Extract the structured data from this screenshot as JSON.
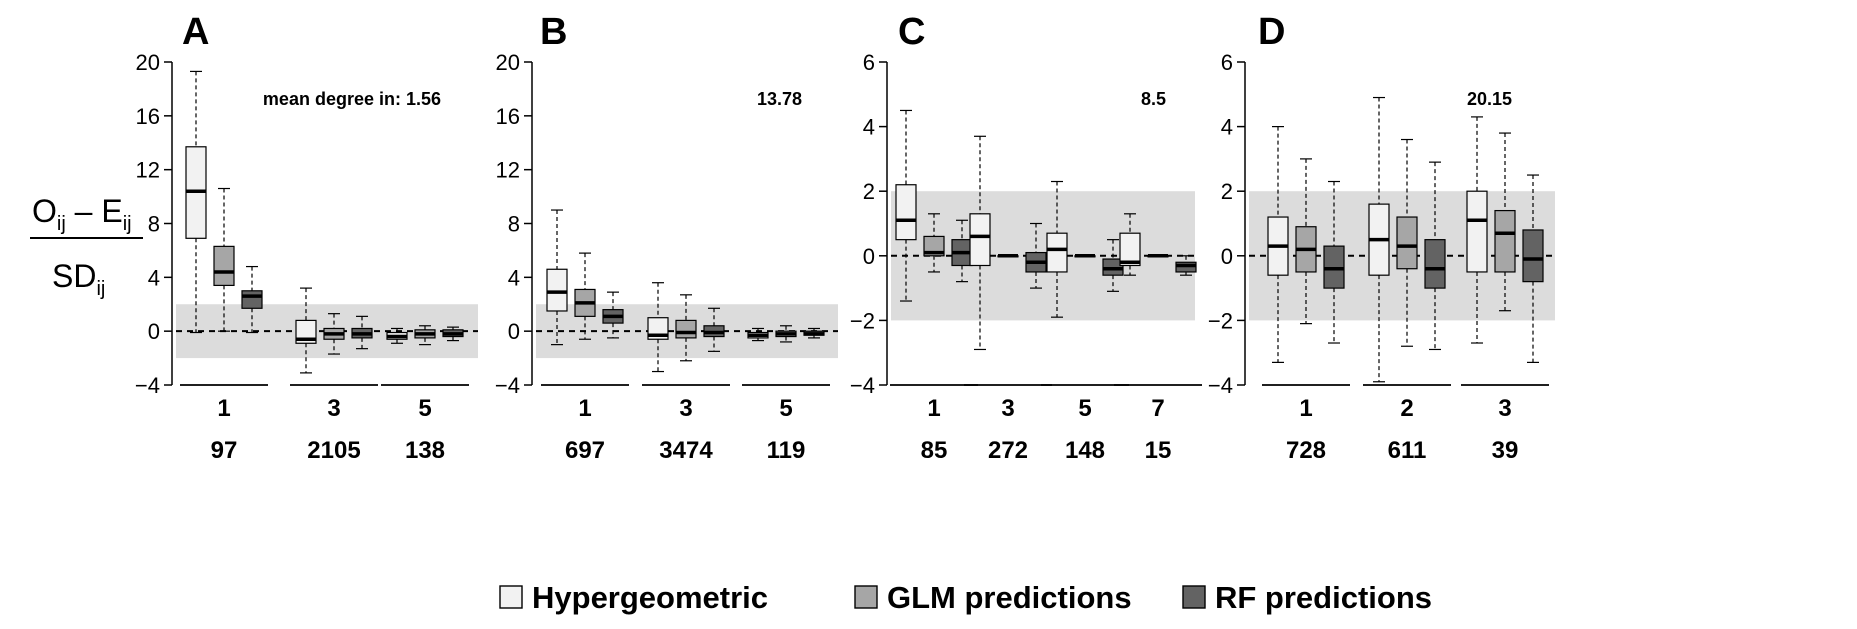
{
  "chart_data": [
    {
      "type": "box",
      "panel": "A",
      "ylim": [
        -4,
        20
      ],
      "yticks": [
        -4,
        0,
        4,
        8,
        12,
        16,
        20
      ],
      "band": [
        -2,
        2
      ],
      "annotation": "mean degree in: 1.56",
      "categories": [
        "1",
        "3",
        "5"
      ],
      "counts": [
        "97",
        "2105",
        "138"
      ],
      "groups": [
        {
          "series": [
            {
              "min": -0.1,
              "q1": 6.9,
              "med": 10.4,
              "q3": 13.7,
              "max": 19.3
            },
            {
              "min": 0.0,
              "q1": 3.4,
              "med": 4.4,
              "q3": 6.3,
              "max": 10.6
            },
            {
              "min": -0.1,
              "q1": 1.7,
              "med": 2.6,
              "q3": 3.0,
              "max": 4.8
            }
          ]
        },
        {
          "series": [
            {
              "min": -3.1,
              "q1": -0.9,
              "med": -0.6,
              "q3": 0.8,
              "max": 3.2
            },
            {
              "min": -1.7,
              "q1": -0.6,
              "med": -0.2,
              "q3": 0.2,
              "max": 1.3
            },
            {
              "min": -1.3,
              "q1": -0.5,
              "med": -0.2,
              "q3": 0.2,
              "max": 1.1
            }
          ]
        },
        {
          "series": [
            {
              "min": -0.9,
              "q1": -0.6,
              "med": -0.4,
              "q3": -0.1,
              "max": 0.2
            },
            {
              "min": -1.0,
              "q1": -0.5,
              "med": -0.2,
              "q3": 0.1,
              "max": 0.4
            },
            {
              "min": -0.7,
              "q1": -0.4,
              "med": -0.2,
              "q3": 0.1,
              "max": 0.3
            }
          ]
        }
      ]
    },
    {
      "type": "box",
      "panel": "B",
      "ylim": [
        -4,
        20
      ],
      "yticks": [
        -4,
        0,
        4,
        8,
        12,
        16,
        20
      ],
      "band": [
        -2,
        2
      ],
      "annotation": "13.78",
      "categories": [
        "1",
        "3",
        "5"
      ],
      "counts": [
        "697",
        "3474",
        "119"
      ],
      "groups": [
        {
          "series": [
            {
              "min": -1.0,
              "q1": 1.5,
              "med": 2.9,
              "q3": 4.6,
              "max": 9.0
            },
            {
              "min": -0.6,
              "q1": 1.1,
              "med": 2.1,
              "q3": 3.1,
              "max": 5.8
            },
            {
              "min": -0.5,
              "q1": 0.6,
              "med": 1.1,
              "q3": 1.6,
              "max": 2.9
            }
          ]
        },
        {
          "series": [
            {
              "min": -3.0,
              "q1": -0.6,
              "med": -0.3,
              "q3": 1.0,
              "max": 3.6
            },
            {
              "min": -2.2,
              "q1": -0.5,
              "med": -0.1,
              "q3": 0.8,
              "max": 2.7
            },
            {
              "min": -1.5,
              "q1": -0.4,
              "med": -0.1,
              "q3": 0.4,
              "max": 1.7
            }
          ]
        },
        {
          "series": [
            {
              "min": -0.7,
              "q1": -0.5,
              "med": -0.3,
              "q3": -0.1,
              "max": 0.2
            },
            {
              "min": -0.8,
              "q1": -0.4,
              "med": -0.2,
              "q3": 0.0,
              "max": 0.4
            },
            {
              "min": -0.5,
              "q1": -0.3,
              "med": -0.2,
              "q3": 0.0,
              "max": 0.2
            }
          ]
        }
      ]
    },
    {
      "type": "box",
      "panel": "C",
      "ylim": [
        -4,
        6
      ],
      "yticks": [
        -4,
        -2,
        0,
        2,
        4,
        6
      ],
      "band": [
        -2,
        2
      ],
      "annotation": "8.5",
      "categories": [
        "1",
        "3",
        "5",
        "7"
      ],
      "counts": [
        "85",
        "272",
        "148",
        "15"
      ],
      "groups": [
        {
          "series": [
            {
              "min": -1.4,
              "q1": 0.5,
              "med": 1.1,
              "q3": 2.2,
              "max": 4.5
            },
            {
              "min": -0.5,
              "q1": 0.0,
              "med": 0.1,
              "q3": 0.6,
              "max": 1.3
            },
            {
              "min": -0.8,
              "q1": -0.3,
              "med": 0.1,
              "q3": 0.5,
              "max": 1.1
            }
          ]
        },
        {
          "series": [
            {
              "min": -2.9,
              "q1": -0.3,
              "med": 0.6,
              "q3": 1.3,
              "max": 3.7
            },
            {
              "min": 0.0,
              "q1": 0.0,
              "med": 0.0,
              "q3": 0.0,
              "max": 0.0
            },
            {
              "min": -1.0,
              "q1": -0.5,
              "med": -0.2,
              "q3": 0.1,
              "max": 1.0
            }
          ]
        },
        {
          "series": [
            {
              "min": -1.9,
              "q1": -0.5,
              "med": 0.2,
              "q3": 0.7,
              "max": 2.3
            },
            {
              "min": 0.0,
              "q1": 0.0,
              "med": 0.0,
              "q3": 0.0,
              "max": 0.0
            },
            {
              "min": -1.1,
              "q1": -0.6,
              "med": -0.4,
              "q3": -0.1,
              "max": 0.5
            }
          ]
        },
        {
          "series": [
            {
              "min": -0.6,
              "q1": -0.3,
              "med": -0.2,
              "q3": 0.7,
              "max": 1.3
            },
            {
              "min": 0.0,
              "q1": 0.0,
              "med": 0.0,
              "q3": 0.0,
              "max": 0.0
            },
            {
              "min": -0.6,
              "q1": -0.5,
              "med": -0.3,
              "q3": -0.2,
              "max": 0.0
            }
          ]
        }
      ]
    },
    {
      "type": "box",
      "panel": "D",
      "ylim": [
        -4,
        6
      ],
      "yticks": [
        -4,
        -2,
        0,
        2,
        4,
        6
      ],
      "band": [
        -2,
        2
      ],
      "annotation": "20.15",
      "categories": [
        "1",
        "2",
        "3"
      ],
      "counts": [
        "728",
        "611",
        "39"
      ],
      "groups": [
        {
          "series": [
            {
              "min": -3.3,
              "q1": -0.6,
              "med": 0.3,
              "q3": 1.2,
              "max": 4.0
            },
            {
              "min": -2.1,
              "q1": -0.5,
              "med": 0.2,
              "q3": 0.9,
              "max": 3.0
            },
            {
              "min": -2.7,
              "q1": -1.0,
              "med": -0.4,
              "q3": 0.3,
              "max": 2.3
            }
          ]
        },
        {
          "series": [
            {
              "min": -3.9,
              "q1": -0.6,
              "med": 0.5,
              "q3": 1.6,
              "max": 4.9
            },
            {
              "min": -2.8,
              "q1": -0.4,
              "med": 0.3,
              "q3": 1.2,
              "max": 3.6
            },
            {
              "min": -2.9,
              "q1": -1.0,
              "med": -0.4,
              "q3": 0.5,
              "max": 2.9
            }
          ]
        },
        {
          "series": [
            {
              "min": -2.7,
              "q1": -0.5,
              "med": 1.1,
              "q3": 2.0,
              "max": 4.3
            },
            {
              "min": -1.7,
              "q1": -0.5,
              "med": 0.7,
              "q3": 1.4,
              "max": 3.8
            },
            {
              "min": -3.3,
              "q1": -0.8,
              "med": -0.1,
              "q3": 0.8,
              "max": 2.5
            }
          ]
        }
      ]
    }
  ],
  "ylabel": {
    "numerator": "O",
    "num_sub1": "ij",
    "minus": " – E",
    "num_sub2": "ij",
    "denominator": "SD",
    "den_sub": "ij"
  },
  "legend": [
    {
      "label": "Hypergeometric",
      "color": "#f2f2f2"
    },
    {
      "label": "GLM predictions",
      "color": "#a6a6a6"
    },
    {
      "label": "RF predictions",
      "color": "#636363"
    }
  ],
  "colors": {
    "band": "#dcdcdc",
    "stroke": "#000000"
  }
}
